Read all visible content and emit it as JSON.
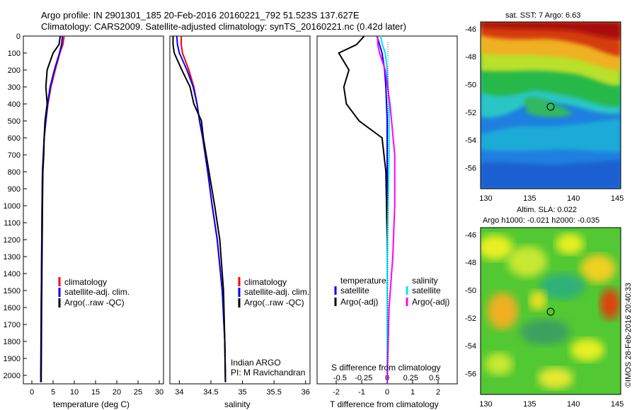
{
  "title": {
    "line1": "Argo profile: IN 2901301_185 20-Feb-2016 20160221_792 51.523S 137.627E",
    "line2": "Climatology: CARS2009. Satellite-adjusted climatology: synTS_20160221.nc (0.42d later)"
  },
  "depth_axis": {
    "ticks": [
      "0",
      "100",
      "200",
      "300",
      "400",
      "500",
      "600",
      "700",
      "800",
      "900",
      "1000",
      "1100",
      "1200",
      "1300",
      "1400",
      "1500",
      "1600",
      "1700",
      "1800",
      "1900",
      "2000"
    ]
  },
  "panel_temp": {
    "xlabel": "temperature (deg C)",
    "xticks": [
      "0",
      "5",
      "10",
      "15",
      "20",
      "25",
      "30"
    ],
    "legend": [
      "climatology",
      "satellite-adj. clim.",
      "Argo(..raw -QC)"
    ]
  },
  "panel_sal": {
    "xlabel": "salinity",
    "xticks": [
      "34",
      "34.5",
      "35",
      "35.5",
      "36"
    ],
    "legend": [
      "climatology",
      "satellite-adj. clim.",
      "Argo(..raw -QC)"
    ],
    "note1": "Indian ARGO",
    "note2": "PI: M Ravichandran"
  },
  "panel_diff": {
    "xlabel": "T difference from climatology",
    "xlabel_top": "S difference from climatology",
    "xticks_t": [
      "-2",
      "-1",
      "0",
      "1",
      "2"
    ],
    "xticks_s": [
      "-0.5",
      "-0.25",
      "0",
      "0.25",
      "0.5"
    ],
    "legend_head_t": "temperature",
    "legend_head_s": "salinity",
    "legend_t": [
      "satellite",
      "Argo(-adj)"
    ],
    "legend_s": [
      "satellite",
      "Argo(-adj)"
    ]
  },
  "map_sst": {
    "title": "sat. SST: 7 Argo: 6.63",
    "yticks": [
      "-46",
      "-48",
      "-50",
      "-52",
      "-54",
      "-56"
    ],
    "xticks": [
      "130",
      "135",
      "140",
      "145"
    ]
  },
  "map_sla": {
    "title1": "Altim. SLA: 0.022",
    "title2": "Argo h1000: -0.021 h2000: -0.035",
    "yticks": [
      "-46",
      "-48",
      "-50",
      "-52",
      "-54",
      "-56"
    ],
    "xticks": [
      "130",
      "135",
      "140",
      "145"
    ]
  },
  "footer": "©IMOS 28-Feb-2016 20:40:33",
  "colors": {
    "climatology": "#ff0000",
    "satellite": "#0000ff",
    "argo": "#000000",
    "sat_sal": "#00e5ff",
    "argo_sal": "#ff00ff"
  },
  "chart_data": [
    {
      "type": "line",
      "title": "",
      "xlabel": "temperature (deg C)",
      "ylabel": "",
      "xlim": [
        -2,
        31
      ],
      "ylim": [
        2050,
        0
      ],
      "series": [
        {
          "name": "climatology",
          "x": [
            7.6,
            7.3,
            6.6,
            5.5,
            4.5,
            3.8,
            3.3,
            2.9,
            2.7,
            2.5,
            2.4,
            2.3,
            2.2,
            2.1
          ],
          "y": [
            0,
            50,
            100,
            200,
            300,
            400,
            500,
            600,
            700,
            800,
            1000,
            1300,
            1600,
            2040
          ]
        },
        {
          "name": "satellite-adj. clim.",
          "x": [
            7.2,
            7.0,
            6.5,
            5.3,
            4.3,
            3.7,
            3.3,
            2.9,
            2.7,
            2.5,
            2.4,
            2.3,
            2.2,
            2.1
          ],
          "y": [
            0,
            50,
            100,
            200,
            300,
            400,
            500,
            600,
            700,
            800,
            1000,
            1300,
            1600,
            2040
          ]
        },
        {
          "name": "Argo(..raw -QC)",
          "x": [
            6.7,
            6.4,
            5.0,
            3.6,
            3.3,
            3.6,
            3.1,
            2.9,
            2.8,
            2.6,
            2.5,
            2.4,
            2.3,
            2.2
          ],
          "y": [
            0,
            50,
            100,
            200,
            300,
            400,
            500,
            600,
            700,
            800,
            1000,
            1300,
            1600,
            2040
          ]
        }
      ]
    },
    {
      "type": "line",
      "title": "",
      "xlabel": "salinity",
      "ylabel": "",
      "xlim": [
        33.85,
        36.07
      ],
      "ylim": [
        2050,
        0
      ],
      "series": [
        {
          "name": "climatology",
          "x": [
            34.03,
            34.03,
            34.05,
            34.15,
            34.23,
            34.28,
            34.32,
            34.37,
            34.45,
            34.52,
            34.6,
            34.68,
            34.72,
            34.73
          ],
          "y": [
            0,
            50,
            100,
            200,
            300,
            400,
            500,
            600,
            800,
            1000,
            1200,
            1500,
            1800,
            2040
          ]
        },
        {
          "name": "satellite-adj. clim.",
          "x": [
            33.96,
            33.97,
            34.0,
            34.12,
            34.22,
            34.28,
            34.32,
            34.37,
            34.45,
            34.52,
            34.6,
            34.68,
            34.72,
            34.73
          ],
          "y": [
            0,
            50,
            100,
            200,
            300,
            400,
            500,
            600,
            800,
            1000,
            1200,
            1500,
            1800,
            2040
          ]
        },
        {
          "name": "Argo(..raw -QC)",
          "x": [
            33.9,
            33.9,
            33.92,
            34.04,
            34.17,
            34.23,
            34.35,
            34.38,
            34.47,
            34.56,
            34.64,
            34.7,
            34.72,
            34.73
          ],
          "y": [
            0,
            50,
            100,
            200,
            300,
            400,
            500,
            600,
            800,
            1000,
            1200,
            1500,
            1800,
            2040
          ]
        }
      ]
    },
    {
      "type": "line",
      "title": "",
      "xlabel": "T difference from climatology",
      "ylabel": "",
      "xlim": [
        -2.75,
        2.75
      ],
      "ylim": [
        2050,
        0
      ],
      "series": [
        {
          "name": "temperature satellite",
          "x": [
            -0.4,
            -0.3,
            -0.2,
            -0.1,
            -0.05,
            0,
            0,
            0,
            0,
            0,
            0
          ],
          "y": [
            0,
            50,
            100,
            200,
            300,
            500,
            800,
            1000,
            1300,
            1600,
            2040
          ]
        },
        {
          "name": "temperature Argo(-adj)",
          "x": [
            -0.9,
            -1.2,
            -1.9,
            -1.5,
            -1.7,
            -1.6,
            -1.1,
            -0.2,
            -0.05,
            0,
            0
          ],
          "y": [
            0,
            50,
            100,
            200,
            300,
            400,
            500,
            600,
            800,
            1200,
            2040
          ]
        },
        {
          "name": "salinity satellite",
          "x": [
            -0.07,
            -0.05,
            -0.02,
            0.0,
            0.02,
            0.02,
            0.01,
            0,
            0,
            0
          ],
          "y": [
            0,
            50,
            100,
            200,
            400,
            700,
            1000,
            1300,
            1600,
            2040
          ]
        },
        {
          "name": "salinity Argo(-adj)",
          "x": [
            -0.1,
            -0.1,
            -0.08,
            -0.02,
            0.03,
            0.08,
            0.08,
            0.06,
            0.02,
            0
          ],
          "y": [
            0,
            50,
            100,
            200,
            400,
            700,
            1000,
            1300,
            1600,
            2040
          ]
        }
      ]
    }
  ]
}
